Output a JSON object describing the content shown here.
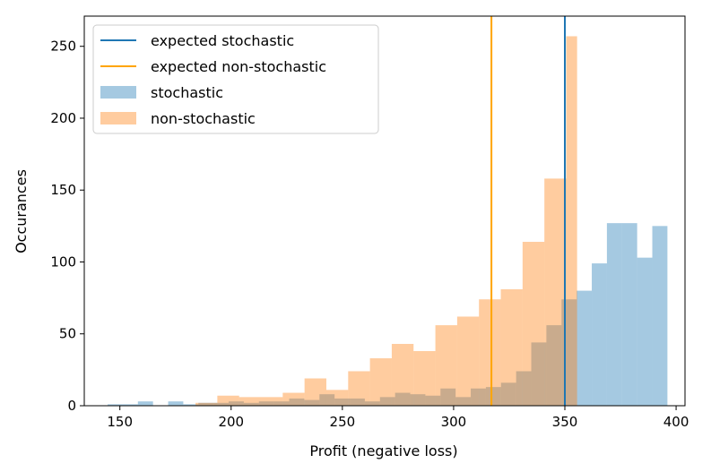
{
  "chart_data": {
    "type": "histogram",
    "xlabel": "Profit (negative loss)",
    "ylabel": "Occurances",
    "xlim": [
      134,
      404
    ],
    "ylim": [
      0,
      271
    ],
    "xticks": [
      150,
      200,
      250,
      300,
      350,
      400
    ],
    "yticks": [
      0,
      50,
      100,
      150,
      200,
      250
    ],
    "series": [
      {
        "name": "stochastic",
        "color": "#1f77b4",
        "alpha": 0.4,
        "bins": [
          {
            "x0": 144.5,
            "x1": 151.3,
            "count": 1
          },
          {
            "x0": 151.3,
            "x1": 158.1,
            "count": 1
          },
          {
            "x0": 158.1,
            "x1": 164.9,
            "count": 3
          },
          {
            "x0": 164.9,
            "x1": 171.7,
            "count": 0
          },
          {
            "x0": 171.7,
            "x1": 178.5,
            "count": 3
          },
          {
            "x0": 178.5,
            "x1": 185.3,
            "count": 1
          },
          {
            "x0": 185.3,
            "x1": 192.1,
            "count": 2
          },
          {
            "x0": 192.1,
            "x1": 198.9,
            "count": 2
          },
          {
            "x0": 198.9,
            "x1": 205.7,
            "count": 3
          },
          {
            "x0": 205.7,
            "x1": 212.5,
            "count": 2
          },
          {
            "x0": 212.5,
            "x1": 219.3,
            "count": 3
          },
          {
            "x0": 219.3,
            "x1": 226.1,
            "count": 3
          },
          {
            "x0": 226.1,
            "x1": 232.9,
            "count": 5
          },
          {
            "x0": 232.9,
            "x1": 239.7,
            "count": 4
          },
          {
            "x0": 239.7,
            "x1": 246.5,
            "count": 8
          },
          {
            "x0": 246.5,
            "x1": 253.3,
            "count": 5
          },
          {
            "x0": 253.3,
            "x1": 260.1,
            "count": 5
          },
          {
            "x0": 260.1,
            "x1": 266.9,
            "count": 3
          },
          {
            "x0": 266.9,
            "x1": 273.7,
            "count": 6
          },
          {
            "x0": 273.7,
            "x1": 280.5,
            "count": 9
          },
          {
            "x0": 280.5,
            "x1": 287.3,
            "count": 8
          },
          {
            "x0": 287.3,
            "x1": 294.1,
            "count": 7
          },
          {
            "x0": 294.1,
            "x1": 300.9,
            "count": 12
          },
          {
            "x0": 300.9,
            "x1": 307.7,
            "count": 6
          },
          {
            "x0": 307.7,
            "x1": 314.5,
            "count": 12
          },
          {
            "x0": 314.5,
            "x1": 321.3,
            "count": 13
          },
          {
            "x0": 321.3,
            "x1": 328.1,
            "count": 16
          },
          {
            "x0": 328.1,
            "x1": 334.9,
            "count": 24
          },
          {
            "x0": 334.9,
            "x1": 341.7,
            "count": 44
          },
          {
            "x0": 341.7,
            "x1": 348.5,
            "count": 56
          },
          {
            "x0": 348.5,
            "x1": 355.3,
            "count": 74
          },
          {
            "x0": 355.3,
            "x1": 362.1,
            "count": 80
          },
          {
            "x0": 362.1,
            "x1": 368.9,
            "count": 99
          },
          {
            "x0": 368.9,
            "x1": 375.7,
            "count": 127
          },
          {
            "x0": 375.7,
            "x1": 382.5,
            "count": 127
          },
          {
            "x0": 382.5,
            "x1": 389.3,
            "count": 103
          },
          {
            "x0": 389.3,
            "x1": 396.1,
            "count": 125
          }
        ]
      },
      {
        "name": "non-stochastic",
        "color": "#ff7f0e",
        "alpha": 0.4,
        "bins": [
          {
            "x0": 184.0,
            "x1": 193.8,
            "count": 2
          },
          {
            "x0": 193.8,
            "x1": 203.6,
            "count": 7
          },
          {
            "x0": 203.6,
            "x1": 213.4,
            "count": 6
          },
          {
            "x0": 213.4,
            "x1": 223.2,
            "count": 6
          },
          {
            "x0": 223.2,
            "x1": 233.0,
            "count": 9
          },
          {
            "x0": 233.0,
            "x1": 242.8,
            "count": 19
          },
          {
            "x0": 242.8,
            "x1": 252.6,
            "count": 11
          },
          {
            "x0": 252.6,
            "x1": 262.4,
            "count": 24
          },
          {
            "x0": 262.4,
            "x1": 272.2,
            "count": 33
          },
          {
            "x0": 272.2,
            "x1": 282.0,
            "count": 43
          },
          {
            "x0": 282.0,
            "x1": 291.8,
            "count": 38
          },
          {
            "x0": 291.8,
            "x1": 301.6,
            "count": 56
          },
          {
            "x0": 301.6,
            "x1": 311.4,
            "count": 62
          },
          {
            "x0": 311.4,
            "x1": 321.2,
            "count": 74
          },
          {
            "x0": 321.2,
            "x1": 331.0,
            "count": 81
          },
          {
            "x0": 331.0,
            "x1": 340.8,
            "count": 114
          },
          {
            "x0": 340.8,
            "x1": 350.6,
            "count": 158
          },
          {
            "x0": 350.6,
            "x1": 355.5,
            "count": 257
          }
        ]
      }
    ],
    "vlines": [
      {
        "name": "expected stochastic",
        "x": 350.0,
        "color": "#1f77b4"
      },
      {
        "name": "expected non-stochastic",
        "x": 317.0,
        "color": "#ffa500"
      }
    ],
    "legend": {
      "placement": "top-left",
      "entries": [
        {
          "label": "expected stochastic",
          "kind": "line",
          "color": "#1f77b4"
        },
        {
          "label": "expected non-stochastic",
          "kind": "line",
          "color": "#ffa500"
        },
        {
          "label": "stochastic",
          "kind": "patch",
          "color": "#1f77b4"
        },
        {
          "label": "non-stochastic",
          "kind": "patch",
          "color": "#ff7f0e"
        }
      ]
    }
  }
}
